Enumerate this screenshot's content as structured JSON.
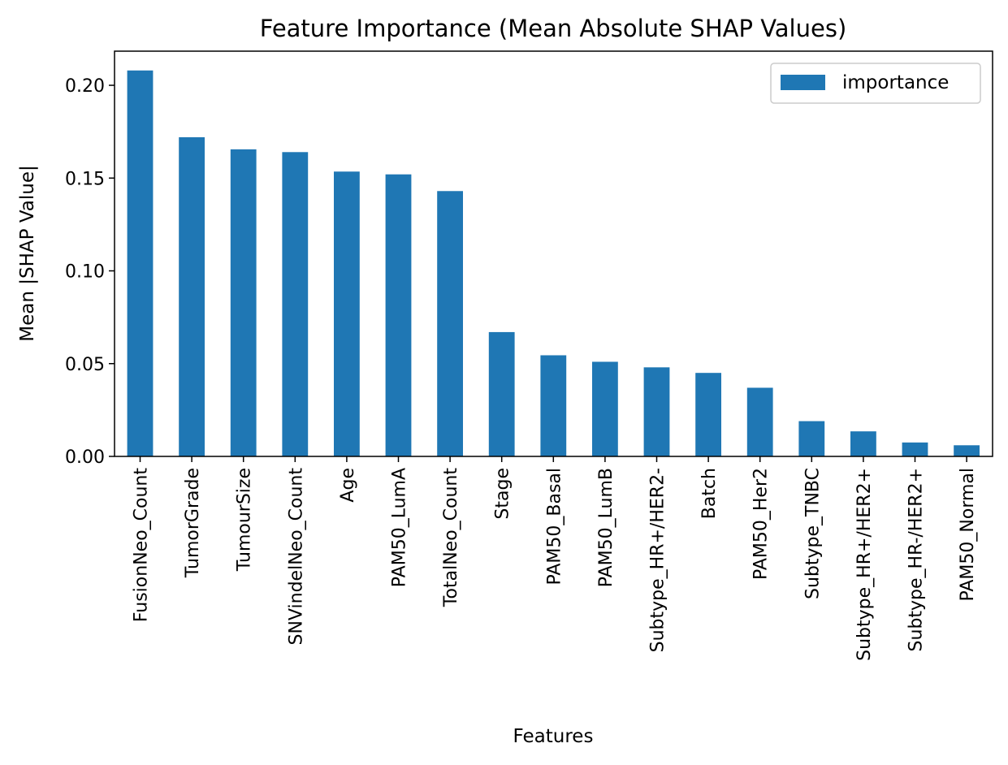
{
  "chart_data": {
    "type": "bar",
    "title": "Feature Importance (Mean Absolute SHAP Values)",
    "xlabel": "Features",
    "ylabel": "Mean |SHAP Value|",
    "categories": [
      "FusionNeo_Count",
      "TumorGrade",
      "TumourSize",
      "SNVindelNeo_Count",
      "Age",
      "PAM50_LumA",
      "TotalNeo_Count",
      "Stage",
      "PAM50_Basal",
      "PAM50_LumB",
      "Subtype_HR+/HER2-",
      "Batch",
      "PAM50_Her2",
      "Subtype_TNBC",
      "Subtype_HR+/HER2+",
      "Subtype_HR-/HER2+",
      "PAM50_Normal"
    ],
    "series": [
      {
        "name": "importance",
        "values": [
          0.208,
          0.172,
          0.1655,
          0.164,
          0.1535,
          0.152,
          0.143,
          0.067,
          0.0545,
          0.051,
          0.048,
          0.045,
          0.037,
          0.019,
          0.0135,
          0.0075,
          0.006
        ]
      }
    ],
    "ylim": [
      0,
      0.2184
    ],
    "yticks": [
      "0.00",
      "0.05",
      "0.10",
      "0.15",
      "0.20"
    ],
    "grid": false,
    "legend_position": "top-right",
    "colors": {
      "bar": "#1f77b4",
      "axis": "#000000",
      "background": "#ffffff"
    }
  }
}
